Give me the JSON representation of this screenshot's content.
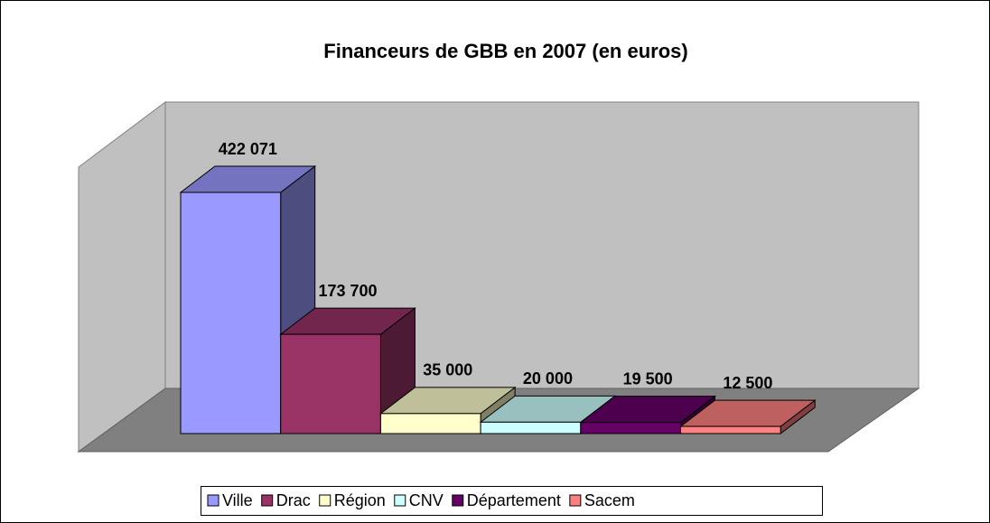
{
  "chart_data": {
    "type": "bar3d",
    "title": "Financeurs de GBB en 2007 (en euros)",
    "series": [
      {
        "name": "Ville",
        "color": "#9999ff",
        "values": [
          422071
        ],
        "value_labels": [
          "422 071"
        ]
      },
      {
        "name": "Drac",
        "color": "#993366",
        "values": [
          173700
        ],
        "value_labels": [
          "173 700"
        ]
      },
      {
        "name": "Région",
        "color": "#ffffcc",
        "values": [
          35000
        ],
        "value_labels": [
          "35 000"
        ]
      },
      {
        "name": "CNV",
        "color": "#ccffff",
        "values": [
          20000
        ],
        "value_labels": [
          "20 000"
        ]
      },
      {
        "name": "Département",
        "color": "#660066",
        "values": [
          19500
        ],
        "value_labels": [
          "19 500"
        ]
      },
      {
        "name": "Sacem",
        "color": "#ff8080",
        "values": [
          12500
        ],
        "value_labels": [
          "12 500"
        ]
      }
    ],
    "legend": "bottom"
  }
}
